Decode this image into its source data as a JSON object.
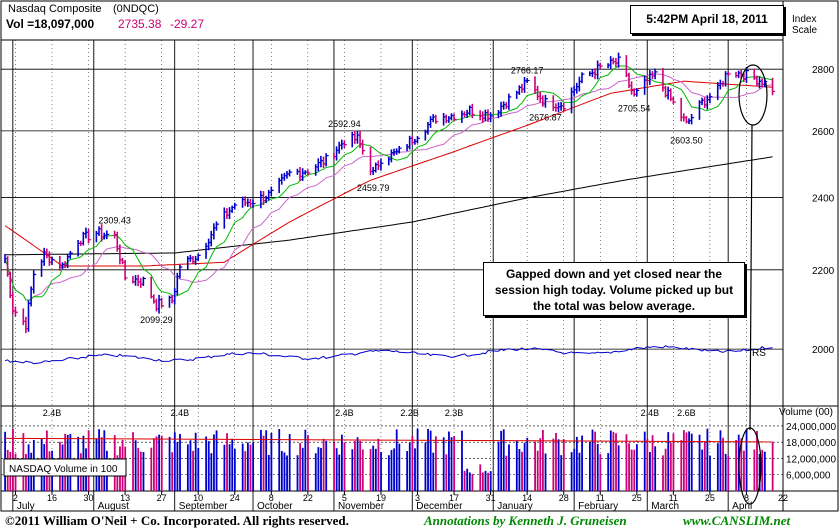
{
  "header": {
    "name": "Nasdaq Composite",
    "symbol": "(0NDQC)",
    "vol_label": "Vol =18,097,000",
    "price": "2735.38",
    "change": "-29.27"
  },
  "timestamp": "5:42PM April 18, 2011",
  "index_scale_label": "Index Scale",
  "annotation": "Gapped down and yet closed near the session high today.  Volume picked up but the total was below average.",
  "volume_panel": {
    "legend": "NASDAQ Volume in 100",
    "axis_title": "Volume (00)",
    "rs_label": "RS"
  },
  "footer": {
    "copyright": "©2011 William O'Neil + Co. Incorporated. All rights reserved.",
    "annotations": "Annotations by Kenneth J. Gruneisen",
    "site": "www.CANSLIM.net"
  },
  "colors": {
    "up": "#0000cc",
    "down": "#cc0077",
    "ma10": "#00bb00",
    "ma21": "#cc66cc",
    "ma50": "#dd0000",
    "ma200": "#000000",
    "rs": "#0000cc",
    "grid": "#000000",
    "price_text": "#cc0077"
  },
  "chart_data": [
    {
      "type": "line",
      "y_scale": "log",
      "ylim": [
        1870,
        2900
      ],
      "y_ticks": [
        2000,
        2200,
        2400,
        2600,
        2800
      ],
      "y_tick_labels": [
        "2000",
        "2200",
        "2400",
        "2600",
        "2800"
      ],
      "x_date_range": [
        "2010-06-28",
        "2011-04-22"
      ],
      "month_labels": [
        "July",
        "August",
        "September",
        "October",
        "November",
        "December",
        "January",
        "February",
        "March",
        "April"
      ],
      "day_ticks": [
        {
          "label": "2",
          "date": "2010-07-02"
        },
        {
          "label": "16",
          "date": "2010-07-16"
        },
        {
          "label": "30",
          "date": "2010-07-30"
        },
        {
          "label": "13",
          "date": "2010-08-13"
        },
        {
          "label": "27",
          "date": "2010-08-27"
        },
        {
          "label": "10",
          "date": "2010-09-10"
        },
        {
          "label": "24",
          "date": "2010-09-24"
        },
        {
          "label": "8",
          "date": "2010-10-08"
        },
        {
          "label": "22",
          "date": "2010-10-22"
        },
        {
          "label": "5",
          "date": "2010-11-05"
        },
        {
          "label": "19",
          "date": "2010-11-19"
        },
        {
          "label": "3",
          "date": "2010-12-03"
        },
        {
          "label": "17",
          "date": "2010-12-17"
        },
        {
          "label": "31",
          "date": "2010-12-31"
        },
        {
          "label": "14",
          "date": "2011-01-14"
        },
        {
          "label": "28",
          "date": "2011-01-28"
        },
        {
          "label": "11",
          "date": "2011-02-11"
        },
        {
          "label": "25",
          "date": "2011-02-25"
        },
        {
          "label": "11",
          "date": "2011-03-11"
        },
        {
          "label": "25",
          "date": "2011-03-25"
        },
        {
          "label": "8",
          "date": "2011-04-08"
        },
        {
          "label": "22",
          "date": "2011-04-22"
        }
      ],
      "price_anchors": [
        [
          "2010-06-28",
          2230
        ],
        [
          "2010-07-01",
          2100
        ],
        [
          "2010-07-06",
          2060
        ],
        [
          "2010-07-09",
          2190
        ],
        [
          "2010-07-13",
          2240
        ],
        [
          "2010-07-20",
          2210
        ],
        [
          "2010-07-26",
          2280
        ],
        [
          "2010-08-02",
          2300
        ],
        [
          "2010-08-09",
          2290
        ],
        [
          "2010-08-13",
          2180
        ],
        [
          "2010-08-20",
          2170
        ],
        [
          "2010-08-25",
          2110
        ],
        [
          "2010-08-31",
          2120
        ],
        [
          "2010-09-03",
          2210
        ],
        [
          "2010-09-10",
          2240
        ],
        [
          "2010-09-17",
          2320
        ],
        [
          "2010-09-24",
          2380
        ],
        [
          "2010-10-01",
          2390
        ],
        [
          "2010-10-08",
          2410
        ],
        [
          "2010-10-15",
          2470
        ],
        [
          "2010-10-22",
          2480
        ],
        [
          "2010-10-29",
          2510
        ],
        [
          "2010-11-05",
          2570
        ],
        [
          "2010-11-10",
          2575
        ],
        [
          "2010-11-16",
          2470
        ],
        [
          "2010-11-19",
          2515
        ],
        [
          "2010-11-26",
          2535
        ],
        [
          "2010-12-03",
          2590
        ],
        [
          "2010-12-10",
          2640
        ],
        [
          "2010-12-17",
          2650
        ],
        [
          "2010-12-23",
          2665
        ],
        [
          "2010-12-31",
          2650
        ],
        [
          "2011-01-07",
          2700
        ],
        [
          "2011-01-14",
          2755
        ],
        [
          "2011-01-21",
          2690
        ],
        [
          "2011-01-28",
          2685
        ],
        [
          "2011-02-04",
          2770
        ],
        [
          "2011-02-11",
          2805
        ],
        [
          "2011-02-18",
          2825
        ],
        [
          "2011-02-24",
          2710
        ],
        [
          "2011-03-01",
          2760
        ],
        [
          "2011-03-04",
          2780
        ],
        [
          "2011-03-10",
          2700
        ],
        [
          "2011-03-16",
          2620
        ],
        [
          "2011-03-22",
          2690
        ],
        [
          "2011-03-28",
          2730
        ],
        [
          "2011-04-01",
          2795
        ],
        [
          "2011-04-08",
          2780
        ],
        [
          "2011-04-14",
          2760
        ],
        [
          "2011-04-18",
          2735
        ]
      ],
      "ma200_anchors": [
        [
          "2010-06-28",
          2240
        ],
        [
          "2010-09-01",
          2245
        ],
        [
          "2010-10-15",
          2280
        ],
        [
          "2010-12-01",
          2330
        ],
        [
          "2011-01-15",
          2400
        ],
        [
          "2011-02-20",
          2450
        ],
        [
          "2011-04-18",
          2520
        ]
      ],
      "ma50_anchors": [
        [
          "2010-06-28",
          2320
        ],
        [
          "2010-07-20",
          2210
        ],
        [
          "2010-08-20",
          2210
        ],
        [
          "2010-09-20",
          2220
        ],
        [
          "2010-10-15",
          2330
        ],
        [
          "2010-11-15",
          2450
        ],
        [
          "2010-12-15",
          2530
        ],
        [
          "2011-01-15",
          2620
        ],
        [
          "2011-02-15",
          2720
        ],
        [
          "2011-03-15",
          2760
        ],
        [
          "2011-04-18",
          2740
        ]
      ],
      "price_labels": [
        {
          "text": "2309.43",
          "date": "2010-08-09",
          "value": 2309.43,
          "pos": "above"
        },
        {
          "text": "2099.29",
          "date": "2010-08-25",
          "value": 2099.29,
          "pos": "below"
        },
        {
          "text": "2592.94",
          "date": "2010-11-05",
          "value": 2592.94,
          "pos": "above"
        },
        {
          "text": "2459.79",
          "date": "2010-11-16",
          "value": 2459.79,
          "pos": "below"
        },
        {
          "text": "2766.17",
          "date": "2011-01-14",
          "value": 2766.17,
          "pos": "above"
        },
        {
          "text": "2676.87",
          "date": "2011-01-21",
          "value": 2676.87,
          "pos": "below"
        },
        {
          "text": "2705.54",
          "date": "2011-02-24",
          "value": 2705.54,
          "pos": "below"
        },
        {
          "text": "2603.50",
          "date": "2011-03-16",
          "value": 2603.5,
          "pos": "below"
        }
      ]
    },
    {
      "type": "bar",
      "ylim": [
        0,
        31000000
      ],
      "y_ticks": [
        6000000,
        12000000,
        18000000,
        24000000
      ],
      "y_tick_labels": [
        "6,000,000",
        "12,000,000",
        "18,000,000",
        "24,000,000"
      ],
      "avg_volume": 18500000,
      "volume_labels": [
        {
          "text": "2.4B",
          "date": "2010-07-16"
        },
        {
          "text": "2.4B",
          "date": "2010-09-03"
        },
        {
          "text": "2.4B",
          "date": "2010-11-05"
        },
        {
          "text": "2.2B",
          "date": "2010-11-30"
        },
        {
          "text": "2.3B",
          "date": "2010-12-17"
        },
        {
          "text": "2.4B",
          "date": "2011-03-02"
        },
        {
          "text": "2.6B",
          "date": "2011-03-16"
        }
      ]
    }
  ]
}
